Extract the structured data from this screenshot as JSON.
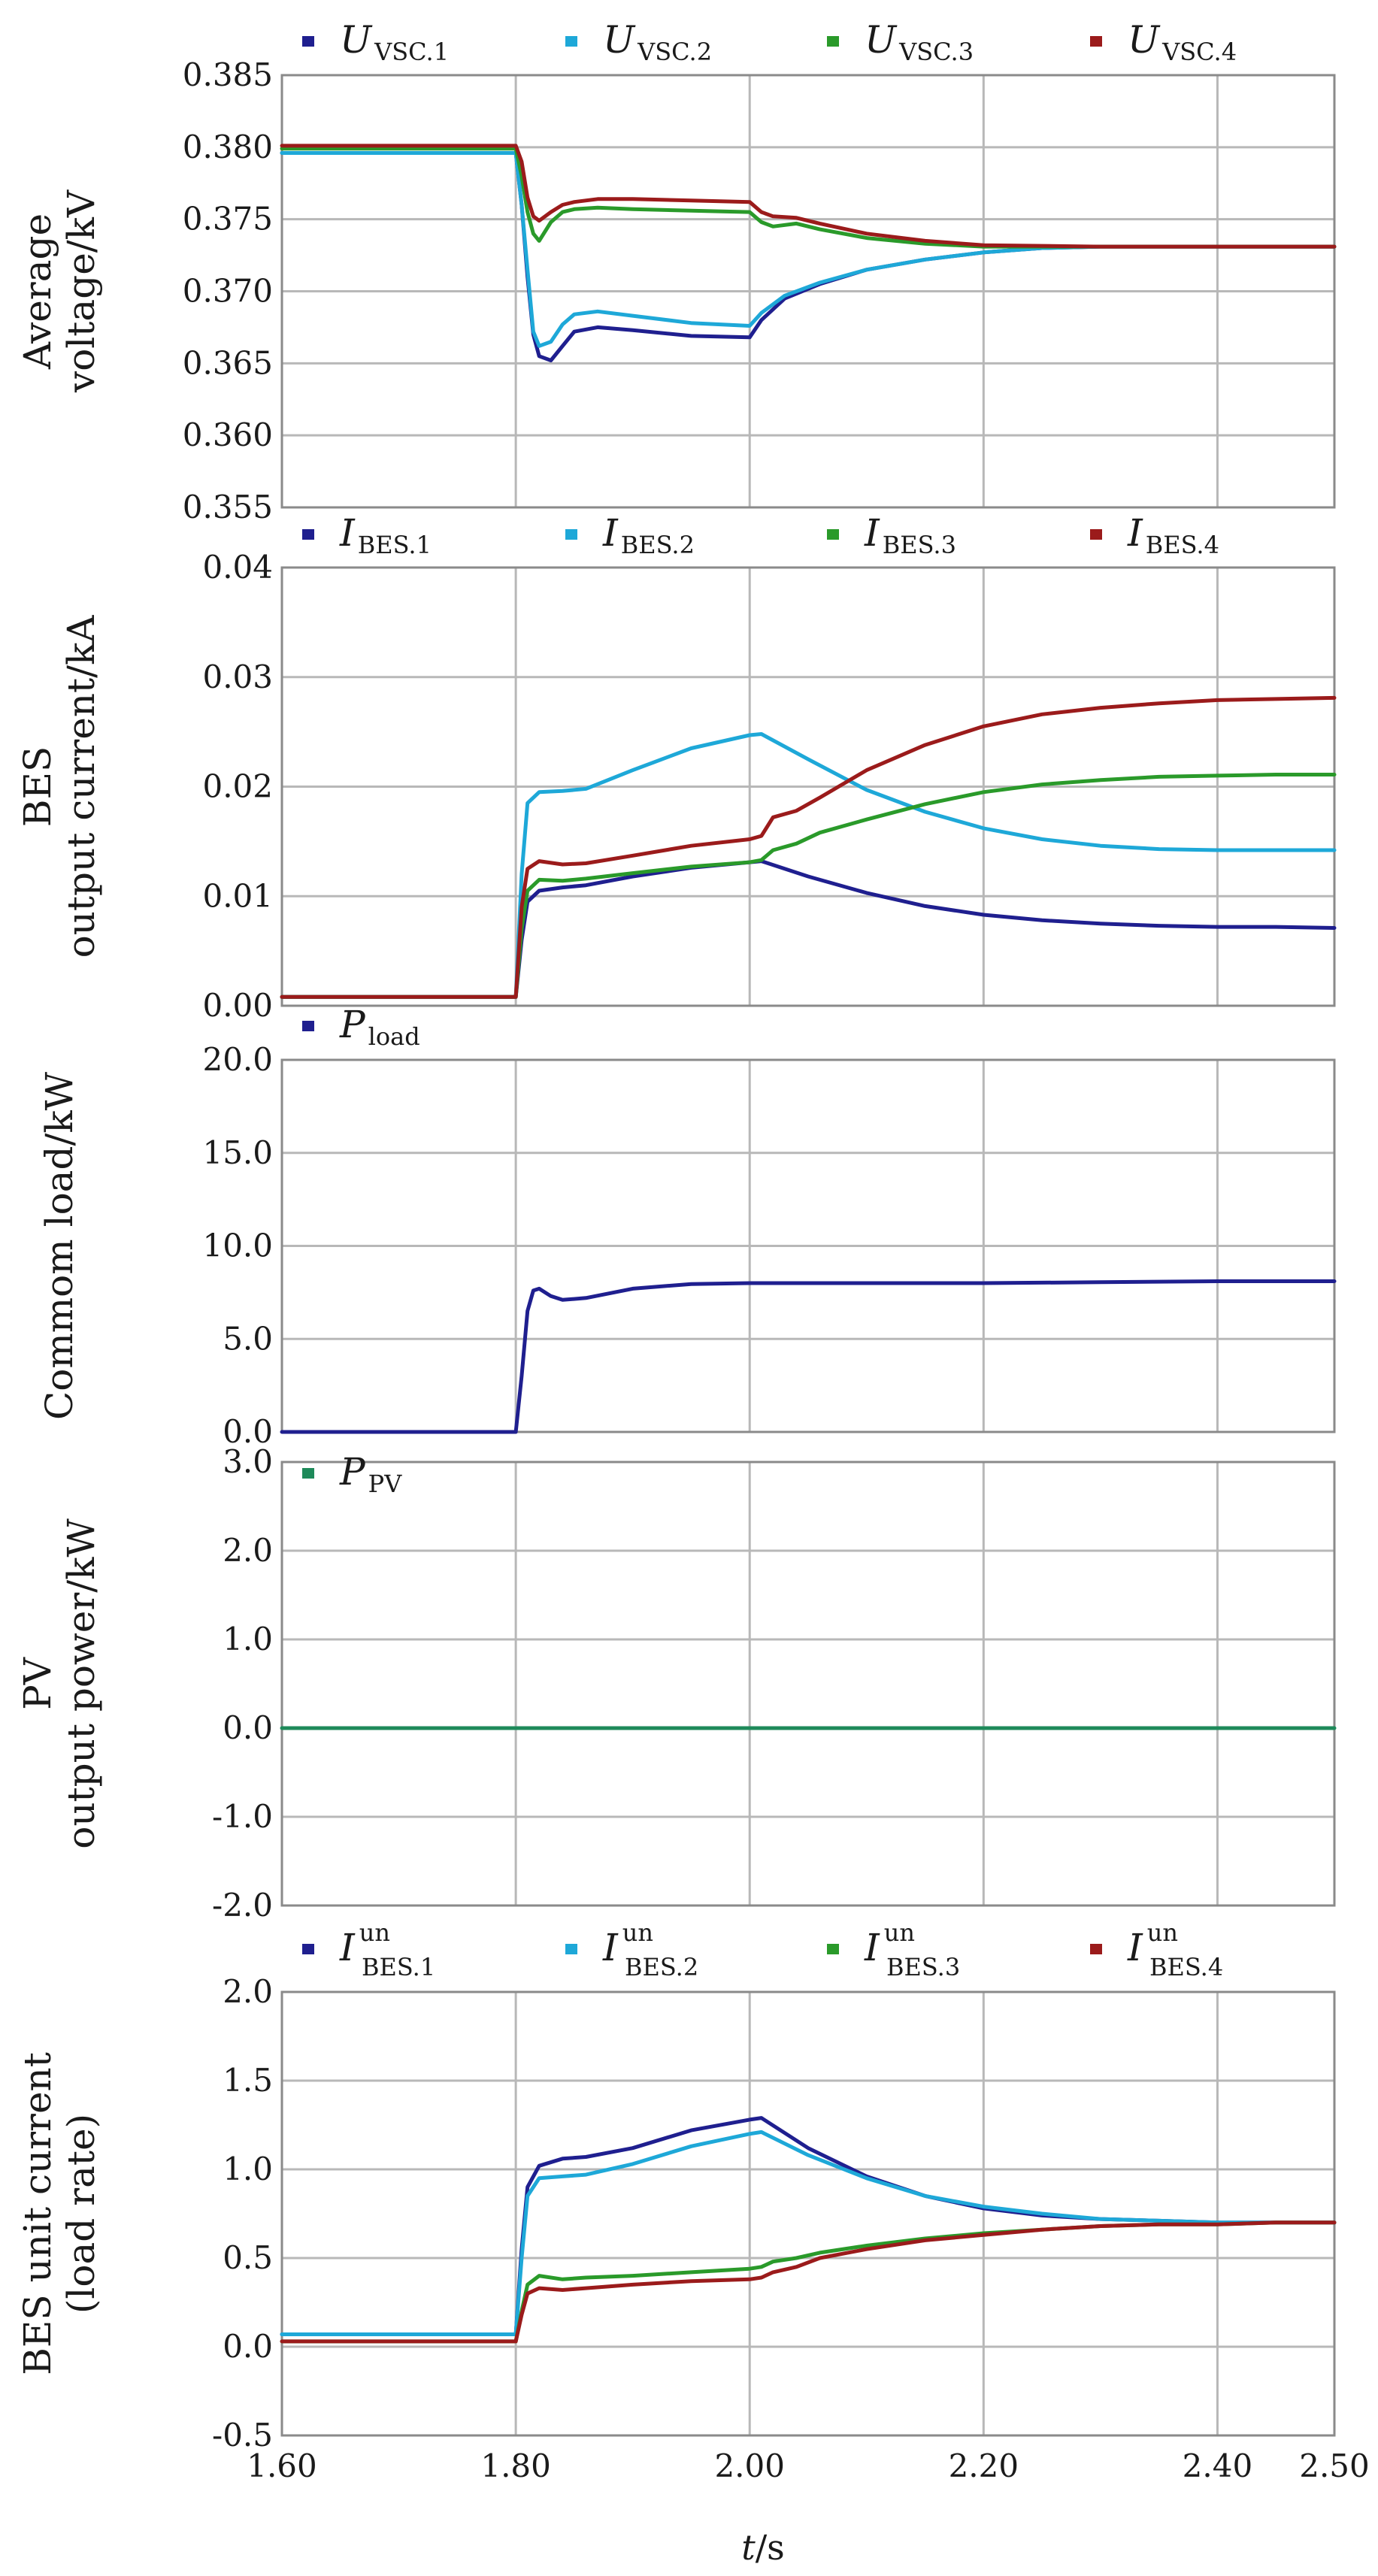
{
  "colors": {
    "blue_dark": "#1f1f8f",
    "blue_light": "#1ea8d8",
    "green": "#2a9a2a",
    "red": "#9b1b1b",
    "pv_green": "#1e8a5a"
  },
  "x_axis": {
    "label_var": "t",
    "label_unit": "/s",
    "range": [
      1.6,
      2.5
    ],
    "ticks": [
      "1.60",
      "1.80",
      "2.00",
      "2.20",
      "2.40",
      "2.50"
    ],
    "tick_values": [
      1.6,
      1.8,
      2.0,
      2.2,
      2.4,
      2.5
    ]
  },
  "chart_data": [
    {
      "type": "line",
      "ylabel": [
        "Average",
        "voltage/kV"
      ],
      "ylim": [
        0.355,
        0.385
      ],
      "yticks": [
        "0.385",
        "0.380",
        "0.375",
        "0.370",
        "0.365",
        "0.360",
        "0.355"
      ],
      "ytick_values": [
        0.385,
        0.38,
        0.375,
        0.37,
        0.365,
        0.36,
        0.355
      ],
      "grid": true,
      "legend_position": "top",
      "series": [
        {
          "name": "U",
          "sub": "VSC.1",
          "color_key": "blue_dark",
          "x": [
            1.6,
            1.8,
            1.805,
            1.81,
            1.815,
            1.82,
            1.83,
            1.84,
            1.85,
            1.87,
            1.9,
            1.95,
            2.0,
            2.01,
            2.03,
            2.06,
            2.1,
            2.15,
            2.2,
            2.25,
            2.3,
            2.35,
            2.4,
            2.45,
            2.5
          ],
          "y": [
            0.3796,
            0.3796,
            0.376,
            0.371,
            0.367,
            0.3655,
            0.3652,
            0.3662,
            0.3672,
            0.3675,
            0.3673,
            0.3669,
            0.3668,
            0.368,
            0.3695,
            0.3705,
            0.3715,
            0.3722,
            0.3727,
            0.373,
            0.3731,
            0.3731,
            0.3731,
            0.3731,
            0.3731
          ]
        },
        {
          "name": "U",
          "sub": "VSC.2",
          "color_key": "blue_light",
          "x": [
            1.6,
            1.8,
            1.805,
            1.81,
            1.815,
            1.82,
            1.83,
            1.84,
            1.85,
            1.87,
            1.9,
            1.95,
            2.0,
            2.01,
            2.03,
            2.06,
            2.1,
            2.15,
            2.2,
            2.25,
            2.3,
            2.35,
            2.4,
            2.45,
            2.5
          ],
          "y": [
            0.3796,
            0.3796,
            0.376,
            0.3715,
            0.3672,
            0.3662,
            0.3665,
            0.3677,
            0.3684,
            0.3686,
            0.3683,
            0.3678,
            0.3676,
            0.3685,
            0.3697,
            0.3706,
            0.3715,
            0.3722,
            0.3727,
            0.373,
            0.3731,
            0.3731,
            0.3731,
            0.3731,
            0.3731
          ]
        },
        {
          "name": "U",
          "sub": "VSC.3",
          "color_key": "green",
          "x": [
            1.6,
            1.8,
            1.805,
            1.81,
            1.815,
            1.82,
            1.83,
            1.84,
            1.85,
            1.87,
            1.9,
            1.95,
            2.0,
            2.01,
            2.02,
            2.04,
            2.06,
            2.1,
            2.15,
            2.2,
            2.3,
            2.4,
            2.5
          ],
          "y": [
            0.3799,
            0.3799,
            0.378,
            0.3755,
            0.374,
            0.3735,
            0.3748,
            0.3755,
            0.3757,
            0.3758,
            0.3757,
            0.3756,
            0.3755,
            0.3748,
            0.3745,
            0.3747,
            0.3743,
            0.3737,
            0.3733,
            0.3731,
            0.3731,
            0.3731,
            0.3731
          ]
        },
        {
          "name": "U",
          "sub": "VSC.4",
          "color_key": "red",
          "x": [
            1.6,
            1.8,
            1.805,
            1.81,
            1.815,
            1.82,
            1.83,
            1.84,
            1.85,
            1.87,
            1.9,
            1.95,
            2.0,
            2.01,
            2.02,
            2.04,
            2.06,
            2.1,
            2.15,
            2.2,
            2.3,
            2.4,
            2.5
          ],
          "y": [
            0.3801,
            0.3801,
            0.379,
            0.3765,
            0.3752,
            0.3749,
            0.3755,
            0.376,
            0.3762,
            0.3764,
            0.3764,
            0.3763,
            0.3762,
            0.3755,
            0.3752,
            0.3751,
            0.3747,
            0.374,
            0.3735,
            0.3732,
            0.3731,
            0.3731,
            0.3731
          ]
        }
      ]
    },
    {
      "type": "line",
      "ylabel": [
        "BES",
        "output current/kA"
      ],
      "ylim": [
        0.0,
        0.04
      ],
      "yticks": [
        "0.04",
        "0.03",
        "0.02",
        "0.01",
        "0.00"
      ],
      "ytick_values": [
        0.04,
        0.03,
        0.02,
        0.01,
        0.0
      ],
      "grid": true,
      "legend_position": "top",
      "series": [
        {
          "name": "I",
          "sub": "BES.1",
          "color_key": "blue_dark",
          "x": [
            1.6,
            1.8,
            1.805,
            1.81,
            1.82,
            1.84,
            1.86,
            1.9,
            1.95,
            2.0,
            2.01,
            2.05,
            2.1,
            2.15,
            2.2,
            2.25,
            2.3,
            2.35,
            2.4,
            2.45,
            2.5
          ],
          "y": [
            0.0008,
            0.0008,
            0.006,
            0.0095,
            0.0105,
            0.0108,
            0.011,
            0.0118,
            0.0126,
            0.0131,
            0.0132,
            0.0118,
            0.0103,
            0.0091,
            0.0083,
            0.0078,
            0.0075,
            0.0073,
            0.0072,
            0.0072,
            0.0071
          ]
        },
        {
          "name": "I",
          "sub": "BES.2",
          "color_key": "blue_light",
          "x": [
            1.6,
            1.8,
            1.805,
            1.81,
            1.82,
            1.84,
            1.86,
            1.9,
            1.95,
            2.0,
            2.01,
            2.05,
            2.1,
            2.15,
            2.2,
            2.25,
            2.3,
            2.35,
            2.4,
            2.45,
            2.5
          ],
          "y": [
            0.0008,
            0.0008,
            0.012,
            0.0185,
            0.0195,
            0.0196,
            0.0198,
            0.0215,
            0.0235,
            0.0247,
            0.0248,
            0.0225,
            0.0197,
            0.0177,
            0.0162,
            0.0152,
            0.0146,
            0.0143,
            0.0142,
            0.0142,
            0.0142
          ]
        },
        {
          "name": "I",
          "sub": "BES.3",
          "color_key": "green",
          "x": [
            1.6,
            1.8,
            1.805,
            1.81,
            1.82,
            1.84,
            1.86,
            1.9,
            1.95,
            2.0,
            2.01,
            2.02,
            2.04,
            2.06,
            2.1,
            2.15,
            2.2,
            2.25,
            2.3,
            2.35,
            2.4,
            2.45,
            2.5
          ],
          "y": [
            0.0008,
            0.0008,
            0.007,
            0.0105,
            0.0115,
            0.0114,
            0.0116,
            0.0121,
            0.0127,
            0.0131,
            0.0133,
            0.0142,
            0.0148,
            0.0158,
            0.017,
            0.0184,
            0.0195,
            0.0202,
            0.0206,
            0.0209,
            0.021,
            0.0211,
            0.0211
          ]
        },
        {
          "name": "I",
          "sub": "BES.4",
          "color_key": "red",
          "x": [
            1.6,
            1.8,
            1.805,
            1.81,
            1.82,
            1.84,
            1.86,
            1.9,
            1.95,
            2.0,
            2.01,
            2.02,
            2.04,
            2.06,
            2.1,
            2.15,
            2.2,
            2.25,
            2.3,
            2.35,
            2.4,
            2.45,
            2.5
          ],
          "y": [
            0.0008,
            0.0008,
            0.009,
            0.0125,
            0.0132,
            0.0129,
            0.013,
            0.0137,
            0.0146,
            0.0152,
            0.0155,
            0.0172,
            0.0178,
            0.019,
            0.0215,
            0.0238,
            0.0255,
            0.0266,
            0.0272,
            0.0276,
            0.0279,
            0.028,
            0.0281
          ]
        }
      ]
    },
    {
      "type": "line",
      "ylabel": [
        "Commom load/kW"
      ],
      "ylim": [
        0.0,
        20.0
      ],
      "yticks": [
        "20.0",
        "15.0",
        "10.0",
        "5.0",
        "0.0"
      ],
      "ytick_values": [
        20,
        15,
        10,
        5,
        0
      ],
      "grid": true,
      "legend_position": "top-left",
      "series": [
        {
          "name": "P",
          "sub": "load",
          "color_key": "blue_dark",
          "x": [
            1.6,
            1.8,
            1.805,
            1.81,
            1.815,
            1.82,
            1.83,
            1.84,
            1.86,
            1.9,
            1.95,
            2.0,
            2.1,
            2.2,
            2.3,
            2.4,
            2.5
          ],
          "y": [
            0.0,
            0.0,
            3.0,
            6.5,
            7.6,
            7.7,
            7.3,
            7.1,
            7.2,
            7.7,
            7.95,
            8.0,
            8.0,
            8.0,
            8.05,
            8.1,
            8.1
          ]
        }
      ]
    },
    {
      "type": "line",
      "ylabel": [
        "PV",
        "output power/kW"
      ],
      "ylim": [
        -2.0,
        3.0
      ],
      "yticks": [
        "3.0",
        "2.0",
        "1.0",
        "0.0",
        "-1.0",
        "-2.0"
      ],
      "ytick_values": [
        3,
        2,
        1,
        0,
        -1,
        -2
      ],
      "grid": true,
      "legend_position": "top-left",
      "series": [
        {
          "name": "P",
          "sub": "PV",
          "color_key": "pv_green",
          "x": [
            1.6,
            2.5
          ],
          "y": [
            0.0,
            0.0
          ]
        }
      ]
    },
    {
      "type": "line",
      "ylabel": [
        "BES  unit current",
        "(load rate)"
      ],
      "ylim": [
        -0.5,
        2.0
      ],
      "yticks": [
        "2.0",
        "1.5",
        "1.0",
        "0.5",
        "0.0",
        "-0.5"
      ],
      "ytick_values": [
        2.0,
        1.5,
        1.0,
        0.5,
        0.0,
        -0.5
      ],
      "grid": true,
      "legend_position": "top",
      "series": [
        {
          "name": "I",
          "sup": "un",
          "sub": "BES.1",
          "color_key": "blue_dark",
          "x": [
            1.6,
            1.8,
            1.805,
            1.81,
            1.82,
            1.84,
            1.86,
            1.9,
            1.95,
            2.0,
            2.01,
            2.05,
            2.1,
            2.15,
            2.2,
            2.25,
            2.3,
            2.35,
            2.4,
            2.45,
            2.5
          ],
          "y": [
            0.07,
            0.07,
            0.55,
            0.9,
            1.02,
            1.06,
            1.07,
            1.12,
            1.22,
            1.28,
            1.29,
            1.12,
            0.96,
            0.85,
            0.78,
            0.74,
            0.72,
            0.71,
            0.7,
            0.7,
            0.7
          ]
        },
        {
          "name": "I",
          "sup": "un",
          "sub": "BES.2",
          "color_key": "blue_light",
          "x": [
            1.6,
            1.8,
            1.805,
            1.81,
            1.82,
            1.84,
            1.86,
            1.9,
            1.95,
            2.0,
            2.01,
            2.05,
            2.1,
            2.15,
            2.2,
            2.25,
            2.3,
            2.35,
            2.4,
            2.45,
            2.5
          ],
          "y": [
            0.07,
            0.07,
            0.5,
            0.85,
            0.95,
            0.96,
            0.97,
            1.03,
            1.13,
            1.2,
            1.21,
            1.08,
            0.95,
            0.85,
            0.79,
            0.75,
            0.72,
            0.71,
            0.7,
            0.7,
            0.7
          ]
        },
        {
          "name": "I",
          "sup": "un",
          "sub": "BES.3",
          "color_key": "green",
          "x": [
            1.6,
            1.8,
            1.805,
            1.81,
            1.82,
            1.84,
            1.86,
            1.9,
            1.95,
            2.0,
            2.01,
            2.02,
            2.04,
            2.06,
            2.1,
            2.15,
            2.2,
            2.25,
            2.3,
            2.35,
            2.4,
            2.45,
            2.5
          ],
          "y": [
            0.03,
            0.03,
            0.2,
            0.35,
            0.4,
            0.38,
            0.39,
            0.4,
            0.42,
            0.44,
            0.45,
            0.48,
            0.5,
            0.53,
            0.57,
            0.61,
            0.64,
            0.66,
            0.68,
            0.69,
            0.69,
            0.7,
            0.7
          ]
        },
        {
          "name": "I",
          "sup": "un",
          "sub": "BES.4",
          "color_key": "red",
          "x": [
            1.6,
            1.8,
            1.805,
            1.81,
            1.82,
            1.84,
            1.86,
            1.9,
            1.95,
            2.0,
            2.01,
            2.02,
            2.04,
            2.06,
            2.1,
            2.15,
            2.2,
            2.25,
            2.3,
            2.35,
            2.4,
            2.45,
            2.5
          ],
          "y": [
            0.03,
            0.03,
            0.18,
            0.3,
            0.33,
            0.32,
            0.33,
            0.35,
            0.37,
            0.38,
            0.39,
            0.42,
            0.45,
            0.5,
            0.55,
            0.6,
            0.63,
            0.66,
            0.68,
            0.69,
            0.69,
            0.7,
            0.7
          ]
        }
      ]
    }
  ]
}
